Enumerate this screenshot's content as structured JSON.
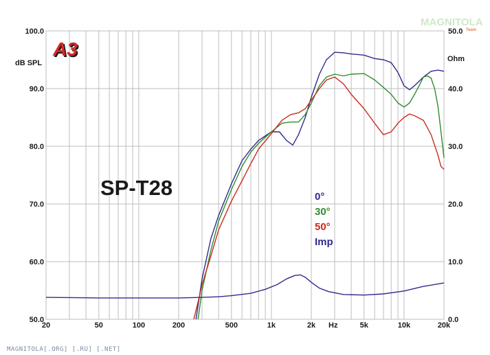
{
  "branding": {
    "logo_text": "A3",
    "watermark": "MAGNITOLA",
    "watermark_sub": "Team",
    "footer": "MAGNITOLA[.ORG] [.RU] [.NET]"
  },
  "chart_data": {
    "type": "line",
    "title": "SP-T28",
    "ylabel": "dB SPL",
    "y2label": "Ohm",
    "xlabel": "Hz",
    "x_scale": "log",
    "xlim": [
      20,
      20000
    ],
    "ylim": [
      50,
      100
    ],
    "y2lim": [
      0,
      50
    ],
    "grid": true,
    "legend_position": "center-right",
    "x_tick_labels": [
      {
        "value": 20,
        "label": "20"
      },
      {
        "value": 50,
        "label": "50"
      },
      {
        "value": 100,
        "label": "100"
      },
      {
        "value": 200,
        "label": "200"
      },
      {
        "value": 500,
        "label": "500"
      },
      {
        "value": 1000,
        "label": "1k"
      },
      {
        "value": 2000,
        "label": "2k"
      },
      {
        "value": 5000,
        "label": "5k"
      },
      {
        "value": 10000,
        "label": "10k"
      },
      {
        "value": 20000,
        "label": "20k"
      }
    ],
    "y_tick_labels": [
      {
        "value": 50,
        "label": "50.0"
      },
      {
        "value": 60,
        "label": "60.0"
      },
      {
        "value": 70,
        "label": "70.0"
      },
      {
        "value": 80,
        "label": "80.0"
      },
      {
        "value": 90,
        "label": "90.0"
      },
      {
        "value": 100,
        "label": "100.0"
      }
    ],
    "y2_tick_labels": [
      {
        "value": 0,
        "label": "0.0"
      },
      {
        "value": 10,
        "label": "10.0"
      },
      {
        "value": 20,
        "label": "20.0"
      },
      {
        "value": 30,
        "label": "30.0"
      },
      {
        "value": 40,
        "label": "40.0"
      },
      {
        "value": 50,
        "label": "50.0"
      }
    ],
    "series": [
      {
        "name": "0°",
        "axis": "left",
        "color": "#2e2a8c",
        "points": [
          [
            270,
            50
          ],
          [
            300,
            57
          ],
          [
            350,
            64
          ],
          [
            400,
            68
          ],
          [
            500,
            73.5
          ],
          [
            600,
            77.5
          ],
          [
            700,
            79.5
          ],
          [
            800,
            81
          ],
          [
            1000,
            82.5
          ],
          [
            1150,
            82.5
          ],
          [
            1300,
            81
          ],
          [
            1450,
            80.2
          ],
          [
            1600,
            82
          ],
          [
            1800,
            85
          ],
          [
            2000,
            88.5
          ],
          [
            2300,
            92.5
          ],
          [
            2600,
            95
          ],
          [
            3000,
            96.3
          ],
          [
            3500,
            96.2
          ],
          [
            4000,
            96
          ],
          [
            5000,
            95.8
          ],
          [
            6000,
            95.2
          ],
          [
            7000,
            95
          ],
          [
            8000,
            94.5
          ],
          [
            9000,
            92.8
          ],
          [
            10000,
            90.5
          ],
          [
            11000,
            89.8
          ],
          [
            12000,
            90.5
          ],
          [
            14000,
            92
          ],
          [
            16000,
            93
          ],
          [
            18000,
            93.2
          ],
          [
            20000,
            93
          ]
        ]
      },
      {
        "name": "30°",
        "axis": "left",
        "color": "#2f8a2f",
        "points": [
          [
            280,
            50
          ],
          [
            300,
            55
          ],
          [
            350,
            62
          ],
          [
            400,
            67
          ],
          [
            500,
            72.5
          ],
          [
            600,
            76.5
          ],
          [
            700,
            79
          ],
          [
            800,
            80.5
          ],
          [
            1000,
            82.5
          ],
          [
            1200,
            84
          ],
          [
            1400,
            84.2
          ],
          [
            1600,
            84.2
          ],
          [
            1800,
            85.5
          ],
          [
            2000,
            87.5
          ],
          [
            2300,
            90.5
          ],
          [
            2600,
            92
          ],
          [
            3000,
            92.5
          ],
          [
            3500,
            92.2
          ],
          [
            4000,
            92.5
          ],
          [
            5000,
            92.6
          ],
          [
            6000,
            91.5
          ],
          [
            7000,
            90.2
          ],
          [
            8000,
            89
          ],
          [
            9000,
            87.5
          ],
          [
            10000,
            86.8
          ],
          [
            11000,
            87.5
          ],
          [
            12000,
            89
          ],
          [
            13000,
            90.5
          ],
          [
            14000,
            92
          ],
          [
            15000,
            92.2
          ],
          [
            16000,
            91.8
          ],
          [
            17000,
            90
          ],
          [
            18000,
            87
          ],
          [
            19000,
            82.5
          ],
          [
            20000,
            78
          ]
        ]
      },
      {
        "name": "50°",
        "axis": "left",
        "color": "#c92a1c",
        "points": [
          [
            260,
            50
          ],
          [
            280,
            53
          ],
          [
            300,
            56
          ],
          [
            350,
            61
          ],
          [
            400,
            65.5
          ],
          [
            500,
            70.5
          ],
          [
            600,
            74
          ],
          [
            700,
            77
          ],
          [
            800,
            79.5
          ],
          [
            1000,
            82.2
          ],
          [
            1200,
            84.5
          ],
          [
            1400,
            85.5
          ],
          [
            1600,
            85.8
          ],
          [
            1800,
            86.5
          ],
          [
            2000,
            88
          ],
          [
            2300,
            90
          ],
          [
            2600,
            91.5
          ],
          [
            3000,
            92
          ],
          [
            3500,
            90.8
          ],
          [
            4000,
            89
          ],
          [
            5000,
            86.5
          ],
          [
            6000,
            84
          ],
          [
            7000,
            82
          ],
          [
            8000,
            82.5
          ],
          [
            9000,
            84
          ],
          [
            10000,
            85
          ],
          [
            11000,
            85.6
          ],
          [
            12000,
            85.3
          ],
          [
            14000,
            84.5
          ],
          [
            16000,
            82
          ],
          [
            18000,
            78.5
          ],
          [
            19000,
            76.5
          ],
          [
            20000,
            76
          ]
        ]
      },
      {
        "name": "Imp",
        "axis": "right",
        "color": "#2e2a8c",
        "points": [
          [
            20,
            3.8
          ],
          [
            50,
            3.7
          ],
          [
            100,
            3.7
          ],
          [
            200,
            3.7
          ],
          [
            300,
            3.8
          ],
          [
            400,
            3.9
          ],
          [
            500,
            4.1
          ],
          [
            700,
            4.5
          ],
          [
            900,
            5.2
          ],
          [
            1100,
            6
          ],
          [
            1300,
            7
          ],
          [
            1500,
            7.6
          ],
          [
            1650,
            7.7
          ],
          [
            1800,
            7.3
          ],
          [
            2000,
            6.4
          ],
          [
            2300,
            5.4
          ],
          [
            2700,
            4.8
          ],
          [
            3500,
            4.3
          ],
          [
            5000,
            4.2
          ],
          [
            7000,
            4.4
          ],
          [
            10000,
            4.9
          ],
          [
            14000,
            5.7
          ],
          [
            20000,
            6.3
          ]
        ]
      }
    ]
  }
}
